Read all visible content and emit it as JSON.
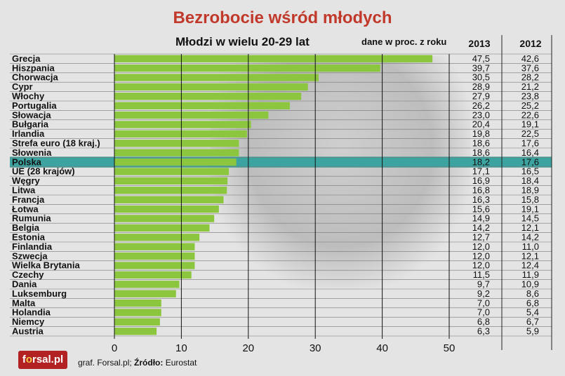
{
  "header": {
    "title": "Bezrobocie wśród młodych",
    "subtitle": "Młodzi w wielu 20-29 lat",
    "note": "dane w proc. z roku",
    "col_2013": "2013",
    "col_2012": "2012"
  },
  "footer": {
    "logo_text": "forsal.pl",
    "source_prefix": "graf. Forsal.pl; ",
    "source_label": "Źródło:",
    "source_name": " Eurostat"
  },
  "colors": {
    "bar": "#8cc63f",
    "highlight": "#3ca3a0",
    "title": "#c0392b",
    "logo": "#b22222"
  },
  "chart_data": {
    "type": "bar",
    "orientation": "horizontal",
    "title": "Bezrobocie wśród młodych",
    "subtitle": "Młodzi w wielu 20-29 lat",
    "categories": [
      "Grecja",
      "Hiszpania",
      "Chorwacja",
      "Cypr",
      "Włochy",
      "Portugalia",
      "Słowacja",
      "Bułgaria",
      "Irlandia",
      "Strefa euro (18 kraj.)",
      "Słowenia",
      "Polska",
      "UE (28 krajów)",
      "Węgry",
      "Litwa",
      "Francja",
      "Łotwa",
      "Rumunia",
      "Belgia",
      "Estonia",
      "Finlandia",
      "Szwecja",
      "Wielka Brytania",
      "Czechy",
      "Dania",
      "Luksemburg",
      "Malta",
      "Holandia",
      "Niemcy",
      "Austria"
    ],
    "series": [
      {
        "name": "2013",
        "values": [
          47.5,
          39.7,
          30.5,
          28.9,
          27.9,
          26.2,
          23.0,
          20.4,
          19.8,
          18.6,
          18.6,
          18.2,
          17.1,
          16.9,
          16.8,
          16.3,
          15.6,
          14.9,
          14.2,
          12.7,
          12.0,
          12.0,
          12.0,
          11.5,
          9.7,
          9.2,
          7.0,
          7.0,
          6.8,
          6.3
        ]
      },
      {
        "name": "2012",
        "values": [
          42.6,
          37.6,
          28.2,
          21.2,
          23.8,
          25.2,
          22.6,
          19.1,
          22.5,
          17.6,
          16.4,
          17.6,
          16.5,
          18.4,
          18.9,
          15.8,
          19.1,
          14.5,
          12.1,
          14.2,
          11.0,
          12.1,
          12.4,
          11.9,
          10.9,
          8.6,
          6.8,
          5.4,
          6.7,
          5.9
        ]
      }
    ],
    "value_labels_2013": [
      "47,5",
      "39,7",
      "30,5",
      "28,9",
      "27,9",
      "26,2",
      "23,0",
      "20,4",
      "19,8",
      "18,6",
      "18,6",
      "18,2",
      "17,1",
      "16,9",
      "16,8",
      "16,3",
      "15,6",
      "14,9",
      "14,2",
      "12,7",
      "12,0",
      "12,0",
      "12,0",
      "11,5",
      "9,7",
      "9,2",
      "7,0",
      "7,0",
      "6,8",
      "6,3"
    ],
    "value_labels_2012": [
      "42,6",
      "37,6",
      "28,2",
      "21,2",
      "23,8",
      "25,2",
      "22,6",
      "19,1",
      "22,5",
      "17,6",
      "16,4",
      "17,6",
      "16,5",
      "18,4",
      "18,9",
      "15,8",
      "19,1",
      "14,5",
      "12,1",
      "14,2",
      "11,0",
      "12,1",
      "12,4",
      "11,9",
      "10,9",
      "8,6",
      "6,8",
      "5,4",
      "6,7",
      "5,9"
    ],
    "bar_series": "2013",
    "highlighted_category": "Polska",
    "xlim": [
      0,
      50
    ],
    "x_ticks": [
      0,
      10,
      20,
      30,
      40,
      50
    ],
    "grid": true
  }
}
